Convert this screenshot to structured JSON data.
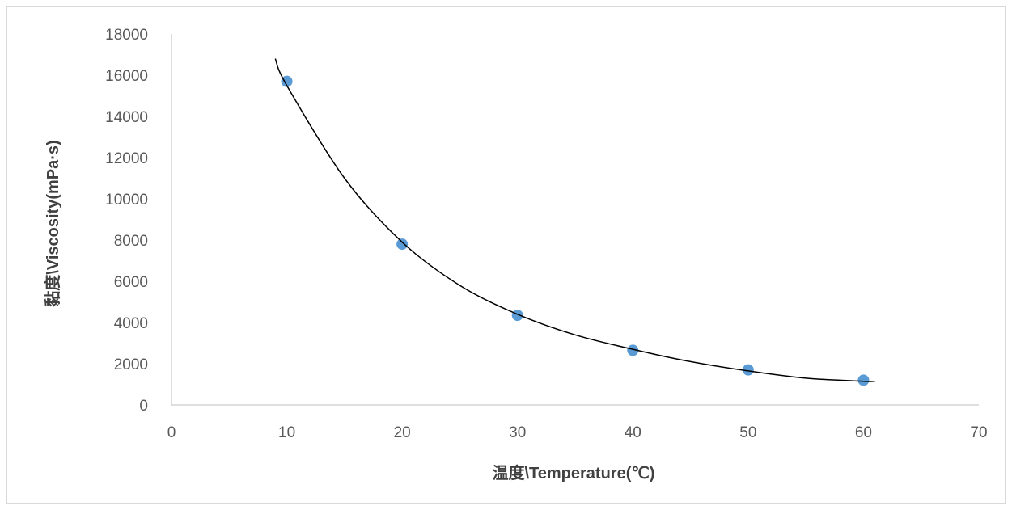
{
  "chart_data": {
    "type": "scatter",
    "title": "",
    "xlabel": "温度\\Temperature(℃)",
    "ylabel": "黏度\\Viscosity(mPa·s)",
    "xlim": [
      0,
      70
    ],
    "ylim": [
      0,
      18000
    ],
    "x_ticks": [
      0,
      10,
      20,
      30,
      40,
      50,
      60,
      70
    ],
    "y_ticks": [
      0,
      2000,
      4000,
      6000,
      8000,
      10000,
      12000,
      14000,
      16000,
      18000
    ],
    "grid": false,
    "legend": "none",
    "series": [
      {
        "x": [
          10,
          20,
          30,
          40,
          50,
          60
        ],
        "y": [
          15700,
          7800,
          4350,
          2650,
          1700,
          1200
        ],
        "color": "#5b9bd5"
      }
    ],
    "trendline": {
      "color": "#000000",
      "x": [
        9,
        10,
        15,
        20,
        25,
        30,
        35,
        40,
        45,
        50,
        55,
        60,
        61
      ],
      "y": [
        16800,
        15500,
        11000,
        7900,
        5800,
        4400,
        3400,
        2700,
        2100,
        1650,
        1300,
        1150,
        1150
      ]
    }
  }
}
